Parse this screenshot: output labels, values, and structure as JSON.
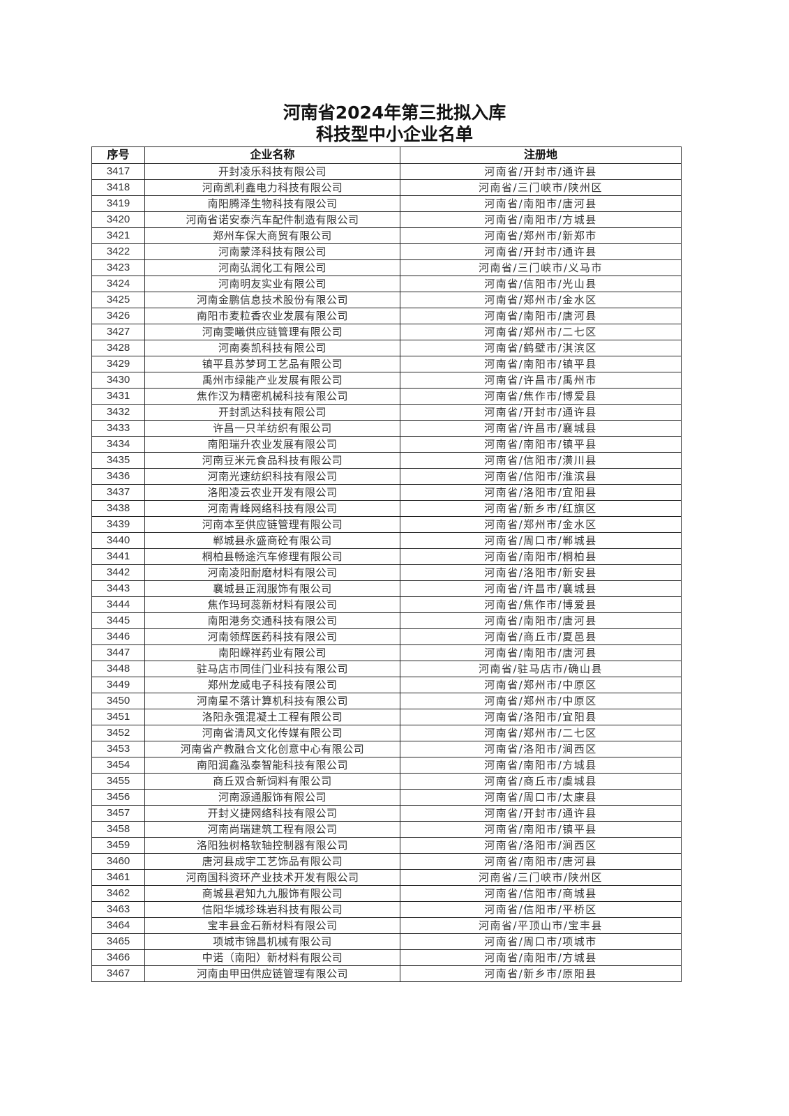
{
  "title": {
    "line1": "河南省2024年第三批拟入库",
    "line2": "科技型中小企业名单"
  },
  "table": {
    "headers": [
      "序号",
      "企业名称",
      "注册地"
    ],
    "rows": [
      [
        "3417",
        "开封凌乐科技有限公司",
        "河南省/开封市/通许县"
      ],
      [
        "3418",
        "河南凯利鑫电力科技有限公司",
        "河南省/三门峡市/陕州区"
      ],
      [
        "3419",
        "南阳腾泽生物科技有限公司",
        "河南省/南阳市/唐河县"
      ],
      [
        "3420",
        "河南省诺安泰汽车配件制造有限公司",
        "河南省/南阳市/方城县"
      ],
      [
        "3421",
        "郑州车保大商贸有限公司",
        "河南省/郑州市/新郑市"
      ],
      [
        "3422",
        "河南蒙泽科技有限公司",
        "河南省/开封市/通许县"
      ],
      [
        "3423",
        "河南弘润化工有限公司",
        "河南省/三门峡市/义马市"
      ],
      [
        "3424",
        "河南明友实业有限公司",
        "河南省/信阳市/光山县"
      ],
      [
        "3425",
        "河南金鹏信息技术股份有限公司",
        "河南省/郑州市/金水区"
      ],
      [
        "3426",
        "南阳市麦粒香农业发展有限公司",
        "河南省/南阳市/唐河县"
      ],
      [
        "3427",
        "河南雯曦供应链管理有限公司",
        "河南省/郑州市/二七区"
      ],
      [
        "3428",
        "河南奏凯科技有限公司",
        "河南省/鹤壁市/淇滨区"
      ],
      [
        "3429",
        "镇平县苏梦珂工艺品有限公司",
        "河南省/南阳市/镇平县"
      ],
      [
        "3430",
        "禹州市绿能产业发展有限公司",
        "河南省/许昌市/禹州市"
      ],
      [
        "3431",
        "焦作汉为精密机械科技有限公司",
        "河南省/焦作市/博爱县"
      ],
      [
        "3432",
        "开封凯达科技有限公司",
        "河南省/开封市/通许县"
      ],
      [
        "3433",
        "许昌一只羊纺织有限公司",
        "河南省/许昌市/襄城县"
      ],
      [
        "3434",
        "南阳瑞升农业发展有限公司",
        "河南省/南阳市/镇平县"
      ],
      [
        "3435",
        "河南豆米元食品科技有限公司",
        "河南省/信阳市/潢川县"
      ],
      [
        "3436",
        "河南光速纺织科技有限公司",
        "河南省/信阳市/淮滨县"
      ],
      [
        "3437",
        "洛阳凌云农业开发有限公司",
        "河南省/洛阳市/宜阳县"
      ],
      [
        "3438",
        "河南青峰网络科技有限公司",
        "河南省/新乡市/红旗区"
      ],
      [
        "3439",
        "河南本至供应链管理有限公司",
        "河南省/郑州市/金水区"
      ],
      [
        "3440",
        "郸城县永盛商砼有限公司",
        "河南省/周口市/郸城县"
      ],
      [
        "3441",
        "桐柏县畅途汽车修理有限公司",
        "河南省/南阳市/桐柏县"
      ],
      [
        "3442",
        "河南凌阳耐磨材料有限公司",
        "河南省/洛阳市/新安县"
      ],
      [
        "3443",
        "襄城县正润服饰有限公司",
        "河南省/许昌市/襄城县"
      ],
      [
        "3444",
        "焦作玛珂蕊新材料有限公司",
        "河南省/焦作市/博爱县"
      ],
      [
        "3445",
        "南阳港务交通科技有限公司",
        "河南省/南阳市/唐河县"
      ],
      [
        "3446",
        "河南领辉医药科技有限公司",
        "河南省/商丘市/夏邑县"
      ],
      [
        "3447",
        "南阳嵘祥药业有限公司",
        "河南省/南阳市/唐河县"
      ],
      [
        "3448",
        "驻马店市同佳门业科技有限公司",
        "河南省/驻马店市/确山县"
      ],
      [
        "3449",
        "郑州龙威电子科技有限公司",
        "河南省/郑州市/中原区"
      ],
      [
        "3450",
        "河南星不落计算机科技有限公司",
        "河南省/郑州市/中原区"
      ],
      [
        "3451",
        "洛阳永强混凝土工程有限公司",
        "河南省/洛阳市/宜阳县"
      ],
      [
        "3452",
        "河南省清风文化传媒有限公司",
        "河南省/郑州市/二七区"
      ],
      [
        "3453",
        "河南省产教融合文化创意中心有限公司",
        "河南省/洛阳市/涧西区"
      ],
      [
        "3454",
        "南阳润鑫泓泰智能科技有限公司",
        "河南省/南阳市/方城县"
      ],
      [
        "3455",
        "商丘双合新饲料有限公司",
        "河南省/商丘市/虞城县"
      ],
      [
        "3456",
        "河南源通服饰有限公司",
        "河南省/周口市/太康县"
      ],
      [
        "3457",
        "开封义捷网络科技有限公司",
        "河南省/开封市/通许县"
      ],
      [
        "3458",
        "河南尚瑞建筑工程有限公司",
        "河南省/南阳市/镇平县"
      ],
      [
        "3459",
        "洛阳独树格软轴控制器有限公司",
        "河南省/洛阳市/涧西区"
      ],
      [
        "3460",
        "唐河县成宇工艺饰品有限公司",
        "河南省/南阳市/唐河县"
      ],
      [
        "3461",
        "河南国科资环产业技术开发有限公司",
        "河南省/三门峡市/陕州区"
      ],
      [
        "3462",
        "商城县君知九九服饰有限公司",
        "河南省/信阳市/商城县"
      ],
      [
        "3463",
        "信阳华城珍珠岩科技有限公司",
        "河南省/信阳市/平桥区"
      ],
      [
        "3464",
        "宝丰县金石新材料有限公司",
        "河南省/平顶山市/宝丰县"
      ],
      [
        "3465",
        "项城市锦昌机械有限公司",
        "河南省/周口市/项城市"
      ],
      [
        "3466",
        "中诺（南阳）新材料有限公司",
        "河南省/南阳市/方城县"
      ],
      [
        "3467",
        "河南由甲田供应链管理有限公司",
        "河南省/新乡市/原阳县"
      ]
    ]
  }
}
